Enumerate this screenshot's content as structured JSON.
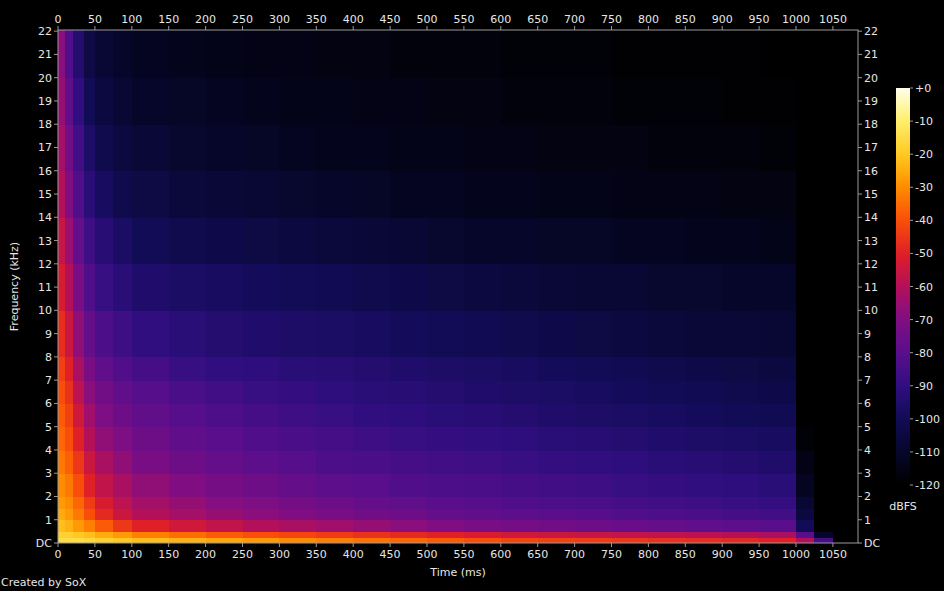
{
  "chart_data": {
    "type": "heatmap",
    "x_label": "Time (ms)",
    "y_label": "Frequency (kHz)",
    "annotation": "Created by SoX",
    "xlim": [
      0,
      1084
    ],
    "xticks": [
      0,
      50,
      100,
      150,
      200,
      250,
      300,
      350,
      400,
      450,
      500,
      550,
      600,
      650,
      700,
      750,
      800,
      850,
      900,
      950,
      1000,
      1050
    ],
    "ylim": [
      0,
      22.05
    ],
    "yticks": [
      {
        "value": 0,
        "label": "DC"
      },
      1,
      2,
      3,
      4,
      5,
      6,
      7,
      8,
      9,
      10,
      11,
      12,
      13,
      14,
      15,
      16,
      17,
      18,
      19,
      20,
      21,
      22
    ],
    "x_edges": [
      0,
      10,
      20,
      35,
      50,
      75,
      100,
      150,
      200,
      250,
      300,
      350,
      400,
      450,
      500,
      550,
      600,
      650,
      700,
      750,
      800,
      850,
      900,
      950,
      1000,
      1025,
      1050,
      1084
    ],
    "y_edges": [
      0,
      0.25,
      0.5,
      1,
      1.5,
      2,
      3,
      4,
      5,
      6,
      7,
      8,
      10,
      12,
      14,
      16,
      18,
      20,
      22.05
    ],
    "cells": [
      [
        -15,
        -15,
        -15,
        -16,
        -18,
        -20,
        -22,
        -24,
        -26,
        -28,
        -30,
        -32,
        -34,
        -36,
        -38,
        -40,
        -42,
        -43,
        -44,
        -45,
        -46,
        -47,
        -48,
        -50,
        -60,
        -85,
        -120
      ],
      [
        -18,
        -18,
        -20,
        -22,
        -25,
        -28,
        -32,
        -35,
        -38,
        -40,
        -42,
        -44,
        -46,
        -48,
        -50,
        -52,
        -54,
        -55,
        -56,
        -57,
        -58,
        -59,
        -60,
        -62,
        -80,
        -110,
        -120
      ],
      [
        -22,
        -24,
        -28,
        -32,
        -38,
        -45,
        -50,
        -54,
        -57,
        -60,
        -62,
        -64,
        -66,
        -68,
        -70,
        -72,
        -73,
        -74,
        -75,
        -76,
        -77,
        -78,
        -79,
        -80,
        -100,
        -120,
        -120
      ],
      [
        -25,
        -28,
        -33,
        -40,
        -48,
        -55,
        -60,
        -63,
        -66,
        -68,
        -70,
        -72,
        -74,
        -75,
        -77,
        -78,
        -79,
        -80,
        -81,
        -82,
        -83,
        -84,
        -85,
        -86,
        -105,
        -120,
        -120
      ],
      [
        -28,
        -30,
        -36,
        -44,
        -52,
        -58,
        -63,
        -66,
        -69,
        -71,
        -73,
        -75,
        -77,
        -78,
        -80,
        -81,
        -82,
        -83,
        -84,
        -85,
        -86,
        -87,
        -88,
        -89,
        -108,
        -120,
        -120
      ],
      [
        -30,
        -33,
        -40,
        -50,
        -57,
        -62,
        -67,
        -70,
        -73,
        -75,
        -77,
        -79,
        -80,
        -82,
        -83,
        -84,
        -85,
        -86,
        -87,
        -88,
        -89,
        -90,
        -91,
        -92,
        -112,
        -120,
        -120
      ],
      [
        -33,
        -37,
        -45,
        -55,
        -62,
        -67,
        -72,
        -75,
        -77,
        -79,
        -81,
        -83,
        -84,
        -85,
        -86,
        -87,
        -88,
        -89,
        -90,
        -91,
        -92,
        -93,
        -94,
        -95,
        -115,
        -120,
        -120
      ],
      [
        -36,
        -40,
        -50,
        -60,
        -67,
        -71,
        -75,
        -78,
        -80,
        -82,
        -84,
        -85,
        -87,
        -88,
        -89,
        -90,
        -91,
        -92,
        -93,
        -94,
        -95,
        -96,
        -97,
        -98,
        -118,
        -120,
        -120
      ],
      [
        -38,
        -43,
        -54,
        -64,
        -71,
        -75,
        -78,
        -81,
        -83,
        -85,
        -87,
        -88,
        -90,
        -91,
        -92,
        -93,
        -94,
        -95,
        -96,
        -97,
        -98,
        -99,
        -100,
        -101,
        -120,
        -120,
        -120
      ],
      [
        -40,
        -46,
        -58,
        -68,
        -74,
        -78,
        -81,
        -84,
        -86,
        -88,
        -89,
        -91,
        -92,
        -93,
        -94,
        -95,
        -96,
        -97,
        -98,
        -99,
        -100,
        -101,
        -102,
        -103,
        -120,
        -120,
        -120
      ],
      [
        -43,
        -50,
        -62,
        -72,
        -78,
        -82,
        -85,
        -88,
        -90,
        -91,
        -92,
        -93,
        -94,
        -95,
        -96,
        -97,
        -98,
        -99,
        -100,
        -101,
        -102,
        -103,
        -104,
        -105,
        -120,
        -120,
        -120
      ],
      [
        -47,
        -55,
        -67,
        -77,
        -83,
        -87,
        -90,
        -92,
        -94,
        -95,
        -96,
        -97,
        -98,
        -99,
        -100,
        -101,
        -102,
        -103,
        -104,
        -105,
        -106,
        -107,
        -107,
        -108,
        -120,
        -120,
        -120
      ],
      [
        -52,
        -60,
        -72,
        -82,
        -88,
        -92,
        -95,
        -97,
        -98,
        -99,
        -100,
        -101,
        -102,
        -103,
        -104,
        -105,
        -106,
        -107,
        -108,
        -108,
        -109,
        -109,
        -110,
        -110,
        -120,
        -120,
        -120
      ],
      [
        -56,
        -65,
        -77,
        -87,
        -93,
        -97,
        -100,
        -102,
        -103,
        -104,
        -105,
        -106,
        -107,
        -108,
        -109,
        -110,
        -110,
        -111,
        -111,
        -112,
        -112,
        -113,
        -113,
        -114,
        -120,
        -120,
        -120
      ],
      [
        -60,
        -70,
        -82,
        -92,
        -98,
        -102,
        -104,
        -106,
        -107,
        -108,
        -109,
        -110,
        -111,
        -112,
        -112,
        -113,
        -113,
        -114,
        -114,
        -115,
        -115,
        -115,
        -116,
        -116,
        -120,
        -120,
        -120
      ],
      [
        -63,
        -74,
        -86,
        -96,
        -102,
        -105,
        -107,
        -109,
        -110,
        -111,
        -112,
        -113,
        -113,
        -114,
        -114,
        -115,
        -115,
        -116,
        -116,
        -116,
        -117,
        -117,
        -117,
        -118,
        -120,
        -120,
        -120
      ],
      [
        -66,
        -78,
        -90,
        -100,
        -105,
        -108,
        -110,
        -111,
        -112,
        -113,
        -114,
        -114,
        -115,
        -115,
        -116,
        -116,
        -117,
        -117,
        -117,
        -118,
        -118,
        -118,
        -119,
        -119,
        -120,
        -120,
        -120
      ],
      [
        -68,
        -82,
        -94,
        -104,
        -108,
        -110,
        -112,
        -113,
        -114,
        -115,
        -115,
        -116,
        -116,
        -117,
        -117,
        -117,
        -118,
        -118,
        -118,
        -119,
        -119,
        -119,
        -119,
        -120,
        -120,
        -120,
        -120
      ]
    ],
    "colorbar_label": "dBFS",
    "colorbar_range": [
      -120,
      0
    ],
    "colorbar_ticks": [
      {
        "value": 0,
        "label": "+0"
      },
      -10,
      -20,
      -30,
      -40,
      -50,
      -60,
      -70,
      -80,
      -90,
      -100,
      -110,
      -120
    ]
  }
}
